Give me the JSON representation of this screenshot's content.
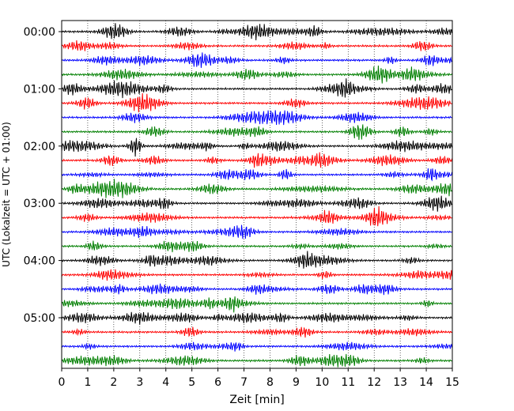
{
  "chart_data": {
    "type": "line",
    "title": "",
    "xlabel": "Zeit  [min]",
    "ylabel": "UTC (Lokalzeit = UTC + 01:00)",
    "xlim": [
      0,
      15
    ],
    "x_ticks": [
      "0",
      "1",
      "2",
      "3",
      "4",
      "5",
      "6",
      "7",
      "8",
      "9",
      "10",
      "11",
      "12",
      "13",
      "14",
      "15"
    ],
    "y_ticks": [
      "00:00",
      "01:00",
      "02:00",
      "03:00",
      "04:00",
      "05:00"
    ],
    "trace_interval_min": 15,
    "trace_count": 24,
    "first_trace_utc": "00:00",
    "color_cycle": [
      "#000000",
      "#ff0000",
      "#0000ff",
      "#007f00"
    ],
    "grid": {
      "x": "dotted",
      "y": "none"
    }
  }
}
